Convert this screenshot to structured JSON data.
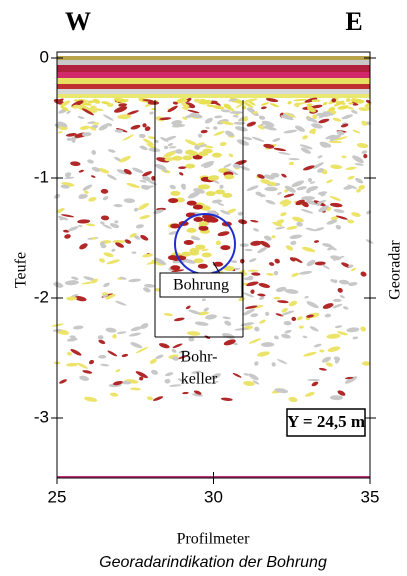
{
  "chart_data": {
    "type": "radargram",
    "left_label": "W",
    "right_label": "E",
    "y_label": "Teufe",
    "y2_label": "Georadar",
    "x_label": "Profilmeter",
    "caption": "Georadarindikation der Bohrung",
    "annotations": {
      "bohrung": "Bohrung",
      "bohrkeller": [
        "Bohr-",
        "keller"
      ],
      "position": "Y = 24,5 m"
    },
    "xlim": [
      25,
      35
    ],
    "xticks": [
      25,
      30,
      35
    ],
    "ylim": [
      -3.5,
      0.05
    ],
    "yticks": [
      0,
      -1,
      -2,
      -3
    ]
  }
}
